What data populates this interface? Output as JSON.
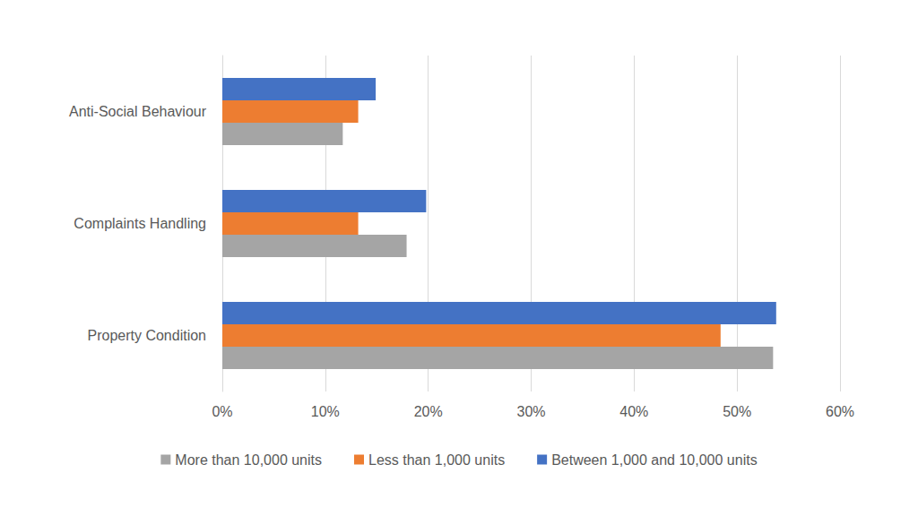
{
  "chart_data": {
    "type": "bar",
    "orientation": "horizontal",
    "categories": [
      "Property Condition",
      "Complaints Handling",
      "Anti-Social Behaviour"
    ],
    "series": [
      {
        "name": "More than 10,000 units",
        "color": "#a5a5a5",
        "values": [
          53.5,
          17.9,
          11.7
        ]
      },
      {
        "name": "Less than 1,000 units",
        "color": "#ed7d31",
        "values": [
          48.4,
          13.2,
          13.2
        ]
      },
      {
        "name": "Between 1,000 and 10,000 units",
        "color": "#4472c4",
        "values": [
          53.8,
          19.8,
          14.9
        ]
      }
    ],
    "xlim": [
      0,
      60
    ],
    "xticks": [
      {
        "value": 0,
        "label": "0%"
      },
      {
        "value": 10,
        "label": "10%"
      },
      {
        "value": 20,
        "label": "20%"
      },
      {
        "value": 30,
        "label": "30%"
      },
      {
        "value": 40,
        "label": "40%"
      },
      {
        "value": 50,
        "label": "50%"
      },
      {
        "value": 60,
        "label": "60%"
      }
    ],
    "grid": true,
    "legend": "bottom"
  }
}
